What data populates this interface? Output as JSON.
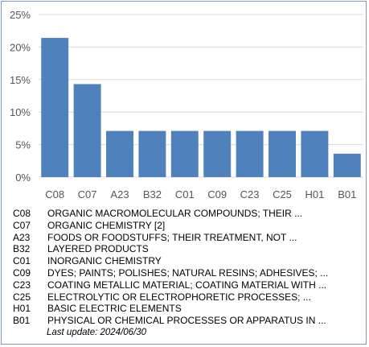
{
  "chart_data": {
    "type": "bar",
    "categories": [
      "C08",
      "C07",
      "A23",
      "B32",
      "C01",
      "C09",
      "C23",
      "C25",
      "H01",
      "B01"
    ],
    "values": [
      21.4,
      14.3,
      7.1,
      7.1,
      7.1,
      7.1,
      7.1,
      7.1,
      7.1,
      3.6
    ],
    "ylim": [
      0,
      25
    ],
    "yticks": [
      0,
      5,
      10,
      15,
      20,
      25
    ],
    "ytick_labels": [
      "0%",
      "5%",
      "10%",
      "15%",
      "20%",
      "25%"
    ],
    "grid": true,
    "bar_color": "#4f81bd",
    "grid_color": "#d9d9d9"
  },
  "legend": [
    {
      "code": "C08",
      "desc": "ORGANIC MACROMOLECULAR COMPOUNDS; THEIR ..."
    },
    {
      "code": "C07",
      "desc": "ORGANIC CHEMISTRY [2]"
    },
    {
      "code": "A23",
      "desc": "FOODS OR FOODSTUFFS; THEIR TREATMENT, NOT ..."
    },
    {
      "code": "B32",
      "desc": "LAYERED PRODUCTS"
    },
    {
      "code": "C01",
      "desc": "INORGANIC CHEMISTRY"
    },
    {
      "code": "C09",
      "desc": "DYES; PAINTS; POLISHES; NATURAL RESINS; ADHESIVES; ..."
    },
    {
      "code": "C23",
      "desc": "COATING METALLIC MATERIAL; COATING MATERIAL WITH ..."
    },
    {
      "code": "C25",
      "desc": "ELECTROLYTIC OR ELECTROPHORETIC PROCESSES; ..."
    },
    {
      "code": "H01",
      "desc": "BASIC ELECTRIC ELEMENTS"
    },
    {
      "code": "B01",
      "desc": "PHYSICAL OR CHEMICAL PROCESSES OR APPARATUS IN ..."
    }
  ],
  "last_update": "Last update:  2024/06/30"
}
